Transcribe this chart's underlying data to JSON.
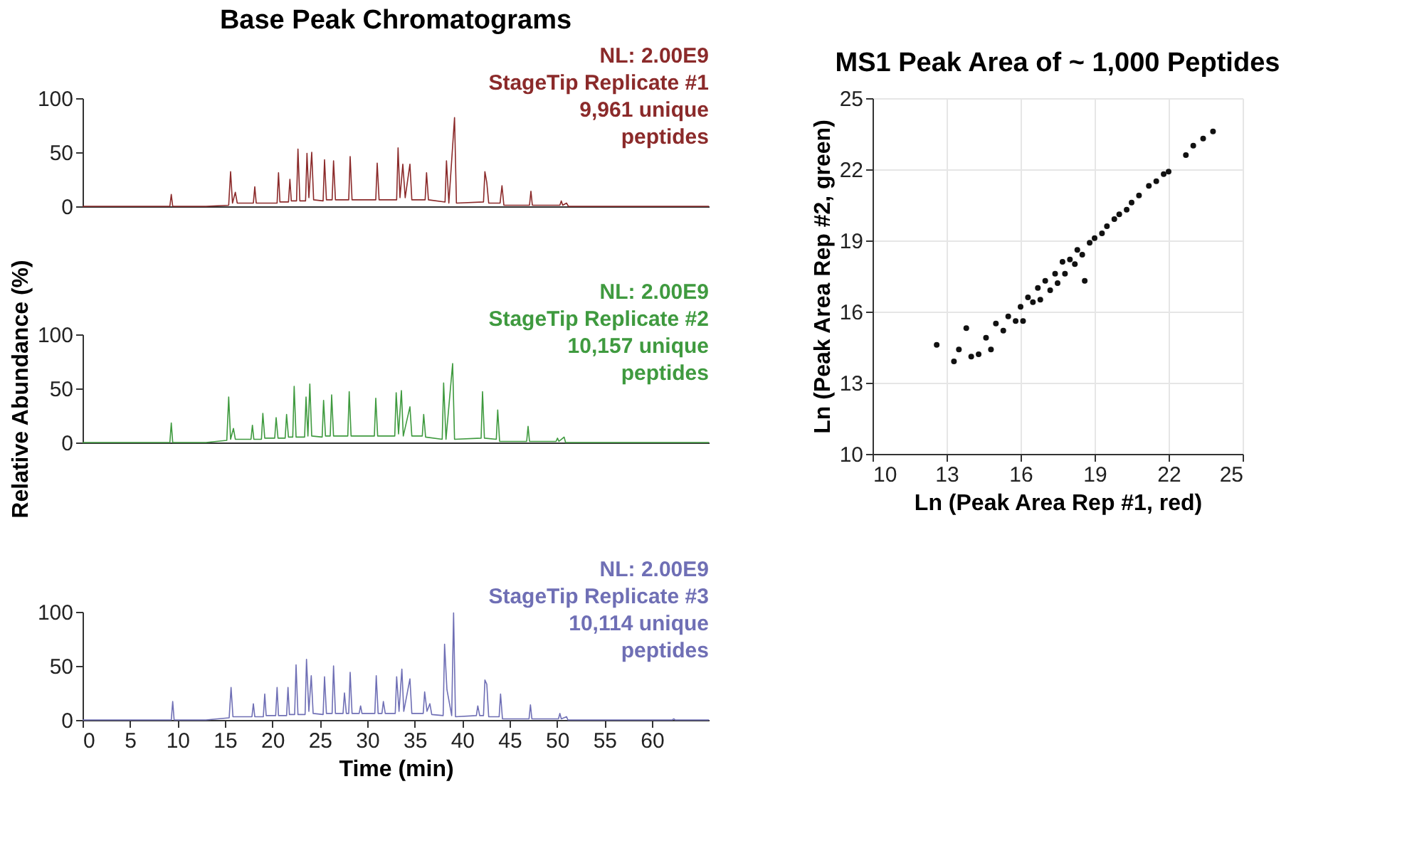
{
  "chart_data": [
    {
      "type": "line",
      "title": "Base Peak Chromatograms",
      "xlim": [
        0,
        66
      ],
      "xticks": [
        0,
        5,
        10,
        15,
        20,
        25,
        30,
        35,
        40,
        45,
        50,
        55,
        60
      ],
      "ylim": [
        0,
        100
      ],
      "yticks": [
        0,
        50,
        100
      ],
      "tick_labels": "y",
      "annotations": [
        "NL: 2.00E9",
        "StageTip Replicate #1",
        "9,961 unique",
        "peptides"
      ],
      "x": [
        0,
        9.2,
        9.35,
        9.5,
        13,
        15.4,
        15.6,
        15.8,
        16.1,
        16.3,
        18.0,
        18.15,
        18.3,
        20.5,
        20.65,
        20.8,
        21.7,
        21.85,
        22.0,
        22.55,
        22.7,
        22.9,
        23.5,
        23.65,
        23.85,
        24.15,
        24.35,
        25.35,
        25.5,
        25.7,
        26.3,
        26.45,
        26.65,
        28.05,
        28.2,
        28.4,
        30.9,
        31.05,
        31.25,
        33.1,
        33.25,
        33.45,
        33.75,
        34.0,
        34.5,
        34.7,
        36.1,
        36.25,
        36.45,
        38.2,
        38.35,
        38.6,
        39.2,
        39.4,
        42.25,
        42.4,
        42.6,
        42.8,
        44.0,
        44.2,
        44.4,
        47.1,
        47.25,
        47.4,
        50.3,
        50.45,
        50.6,
        51.0,
        51.2,
        66
      ],
      "series": [
        {
          "color": "#8b2a2a",
          "values": [
            0,
            0,
            11,
            0,
            0,
            1,
            32,
            3,
            13,
            3,
            3,
            18,
            3,
            3,
            31,
            4,
            4,
            25,
            5,
            5,
            53,
            5,
            5,
            49,
            8,
            50,
            6,
            5,
            43,
            6,
            6,
            42,
            6,
            6,
            46,
            6,
            6,
            40,
            6,
            6,
            54,
            8,
            39,
            8,
            39,
            6,
            6,
            31,
            6,
            4,
            42,
            3,
            82,
            3,
            4,
            32,
            22,
            3,
            3,
            19,
            1,
            1,
            14,
            1,
            1,
            5,
            1,
            3,
            0,
            0
          ]
        }
      ]
    },
    {
      "type": "line",
      "xlim": [
        0,
        66
      ],
      "xticks": [
        0,
        5,
        10,
        15,
        20,
        25,
        30,
        35,
        40,
        45,
        50,
        55,
        60
      ],
      "ylim": [
        0,
        100
      ],
      "yticks": [
        0,
        50,
        100
      ],
      "tick_labels": "y",
      "ylabel": "Relative Abundance (%)",
      "annotations": [
        "NL: 2.00E9",
        "StageTip Replicate #2",
        "10,157 unique",
        "peptides"
      ],
      "x": [
        0,
        9.2,
        9.35,
        9.5,
        13,
        15.2,
        15.4,
        15.6,
        15.9,
        16.1,
        17.75,
        17.9,
        18.05,
        18.85,
        19.0,
        19.2,
        20.25,
        20.4,
        20.6,
        21.35,
        21.5,
        21.7,
        22.15,
        22.3,
        22.5,
        23.4,
        23.55,
        23.75,
        23.95,
        24.15,
        25.25,
        25.4,
        25.6,
        26.1,
        26.25,
        26.45,
        27.95,
        28.1,
        28.3,
        30.75,
        30.9,
        31.1,
        32.9,
        33.05,
        33.3,
        33.6,
        33.8,
        34.5,
        34.7,
        35.8,
        35.95,
        36.15,
        37.9,
        38.05,
        38.3,
        39.0,
        39.2,
        42.0,
        42.15,
        42.35,
        43.6,
        43.75,
        43.95,
        46.8,
        46.95,
        47.1,
        49.9,
        50.05,
        50.2,
        50.75,
        50.9,
        66
      ],
      "series": [
        {
          "color": "#3f9a3f",
          "values": [
            0,
            0,
            18,
            0,
            0,
            2,
            42,
            3,
            13,
            3,
            3,
            16,
            3,
            3,
            27,
            4,
            4,
            23,
            4,
            4,
            26,
            5,
            5,
            52,
            5,
            5,
            42,
            6,
            54,
            6,
            5,
            39,
            6,
            6,
            44,
            6,
            6,
            47,
            6,
            6,
            41,
            6,
            6,
            46,
            8,
            48,
            6,
            33,
            6,
            6,
            26,
            5,
            3,
            55,
            3,
            73,
            3,
            4,
            47,
            4,
            3,
            30,
            1,
            1,
            15,
            1,
            1,
            4,
            1,
            5,
            0,
            0
          ]
        }
      ]
    },
    {
      "type": "line",
      "xlim": [
        0,
        66
      ],
      "xticks": [
        0,
        5,
        10,
        15,
        20,
        25,
        30,
        35,
        40,
        45,
        50,
        55,
        60
      ],
      "ylim": [
        0,
        100
      ],
      "yticks": [
        0,
        50,
        100
      ],
      "xlabel": "Time (min)",
      "annotations": [
        "NL: 2.00E9",
        "StageTip Replicate #3",
        "10,114 unique",
        "peptides"
      ],
      "x": [
        0,
        9.35,
        9.5,
        9.65,
        13,
        15.45,
        15.65,
        15.85,
        17.85,
        18.0,
        18.15,
        19.05,
        19.2,
        19.35,
        20.35,
        20.5,
        20.65,
        21.5,
        21.65,
        21.8,
        22.35,
        22.5,
        22.7,
        23.45,
        23.6,
        23.85,
        24.1,
        24.3,
        25.35,
        25.5,
        25.7,
        26.3,
        26.45,
        26.65,
        27.45,
        27.6,
        27.8,
        28.05,
        28.2,
        28.4,
        29.15,
        29.3,
        29.45,
        30.8,
        30.95,
        31.15,
        31.55,
        31.7,
        31.9,
        32.95,
        33.1,
        33.35,
        33.65,
        33.85,
        34.5,
        34.7,
        35.9,
        36.05,
        36.3,
        36.6,
        36.8,
        38.0,
        38.15,
        38.4,
        38.9,
        39.1,
        39.3,
        41.5,
        41.65,
        41.85,
        42.25,
        42.4,
        42.6,
        42.8,
        43.9,
        44.05,
        44.25,
        47.05,
        47.2,
        47.35,
        50.15,
        50.3,
        50.45,
        51.0,
        51.15,
        62.15,
        62.3,
        62.45,
        66
      ],
      "series": [
        {
          "color": "#6f6fb5",
          "values": [
            0,
            0,
            17,
            0,
            0,
            2,
            30,
            3,
            3,
            15,
            3,
            3,
            24,
            4,
            4,
            30,
            4,
            4,
            30,
            5,
            5,
            51,
            5,
            5,
            56,
            8,
            41,
            6,
            5,
            40,
            6,
            6,
            50,
            6,
            6,
            25,
            6,
            6,
            44,
            6,
            6,
            13,
            6,
            6,
            41,
            6,
            6,
            17,
            6,
            6,
            40,
            8,
            47,
            8,
            38,
            6,
            6,
            26,
            8,
            15,
            5,
            4,
            70,
            28,
            4,
            99,
            3,
            4,
            13,
            4,
            4,
            37,
            33,
            3,
            3,
            24,
            1,
            1,
            14,
            1,
            1,
            6,
            1,
            3,
            0,
            0,
            1,
            0,
            0
          ]
        }
      ]
    },
    {
      "type": "scatter",
      "title": "MS1 Peak Area of ~ 1,000 Peptides",
      "xlabel": "Ln (Peak Area Rep #1, red)",
      "ylabel": "Ln (Peak Area Rep #2, green)",
      "xlim": [
        10,
        25
      ],
      "xticks": [
        10,
        13,
        16,
        19,
        22,
        25
      ],
      "ylim": [
        10,
        25
      ],
      "yticks": [
        10,
        13,
        16,
        19,
        22,
        25
      ],
      "grid": true,
      "marker": "circle",
      "x": [
        12.6,
        13.3,
        13.5,
        13.8,
        14.0,
        14.3,
        14.6,
        14.8,
        15.0,
        15.3,
        15.5,
        15.8,
        16.0,
        16.1,
        16.3,
        16.5,
        16.7,
        16.8,
        17.0,
        17.2,
        17.4,
        17.5,
        17.7,
        17.8,
        18.0,
        18.2,
        18.3,
        18.5,
        18.6,
        18.8,
        19.0,
        19.3,
        19.5,
        19.8,
        20.0,
        20.3,
        20.5,
        20.8,
        21.2,
        21.5,
        21.8,
        22.0,
        22.7,
        23.0,
        23.4,
        23.8
      ],
      "series": [
        {
          "color": "#111111",
          "values": [
            14.6,
            13.9,
            14.4,
            15.3,
            14.1,
            14.2,
            14.9,
            14.4,
            15.5,
            15.2,
            15.8,
            15.6,
            16.2,
            15.6,
            16.6,
            16.4,
            17.0,
            16.5,
            17.3,
            16.9,
            17.6,
            17.2,
            18.1,
            17.6,
            18.2,
            18.0,
            18.6,
            18.4,
            17.3,
            18.9,
            19.1,
            19.3,
            19.6,
            19.9,
            20.1,
            20.3,
            20.6,
            20.9,
            21.3,
            21.5,
            21.8,
            21.9,
            22.6,
            23.0,
            23.3,
            23.6
          ]
        }
      ]
    }
  ]
}
